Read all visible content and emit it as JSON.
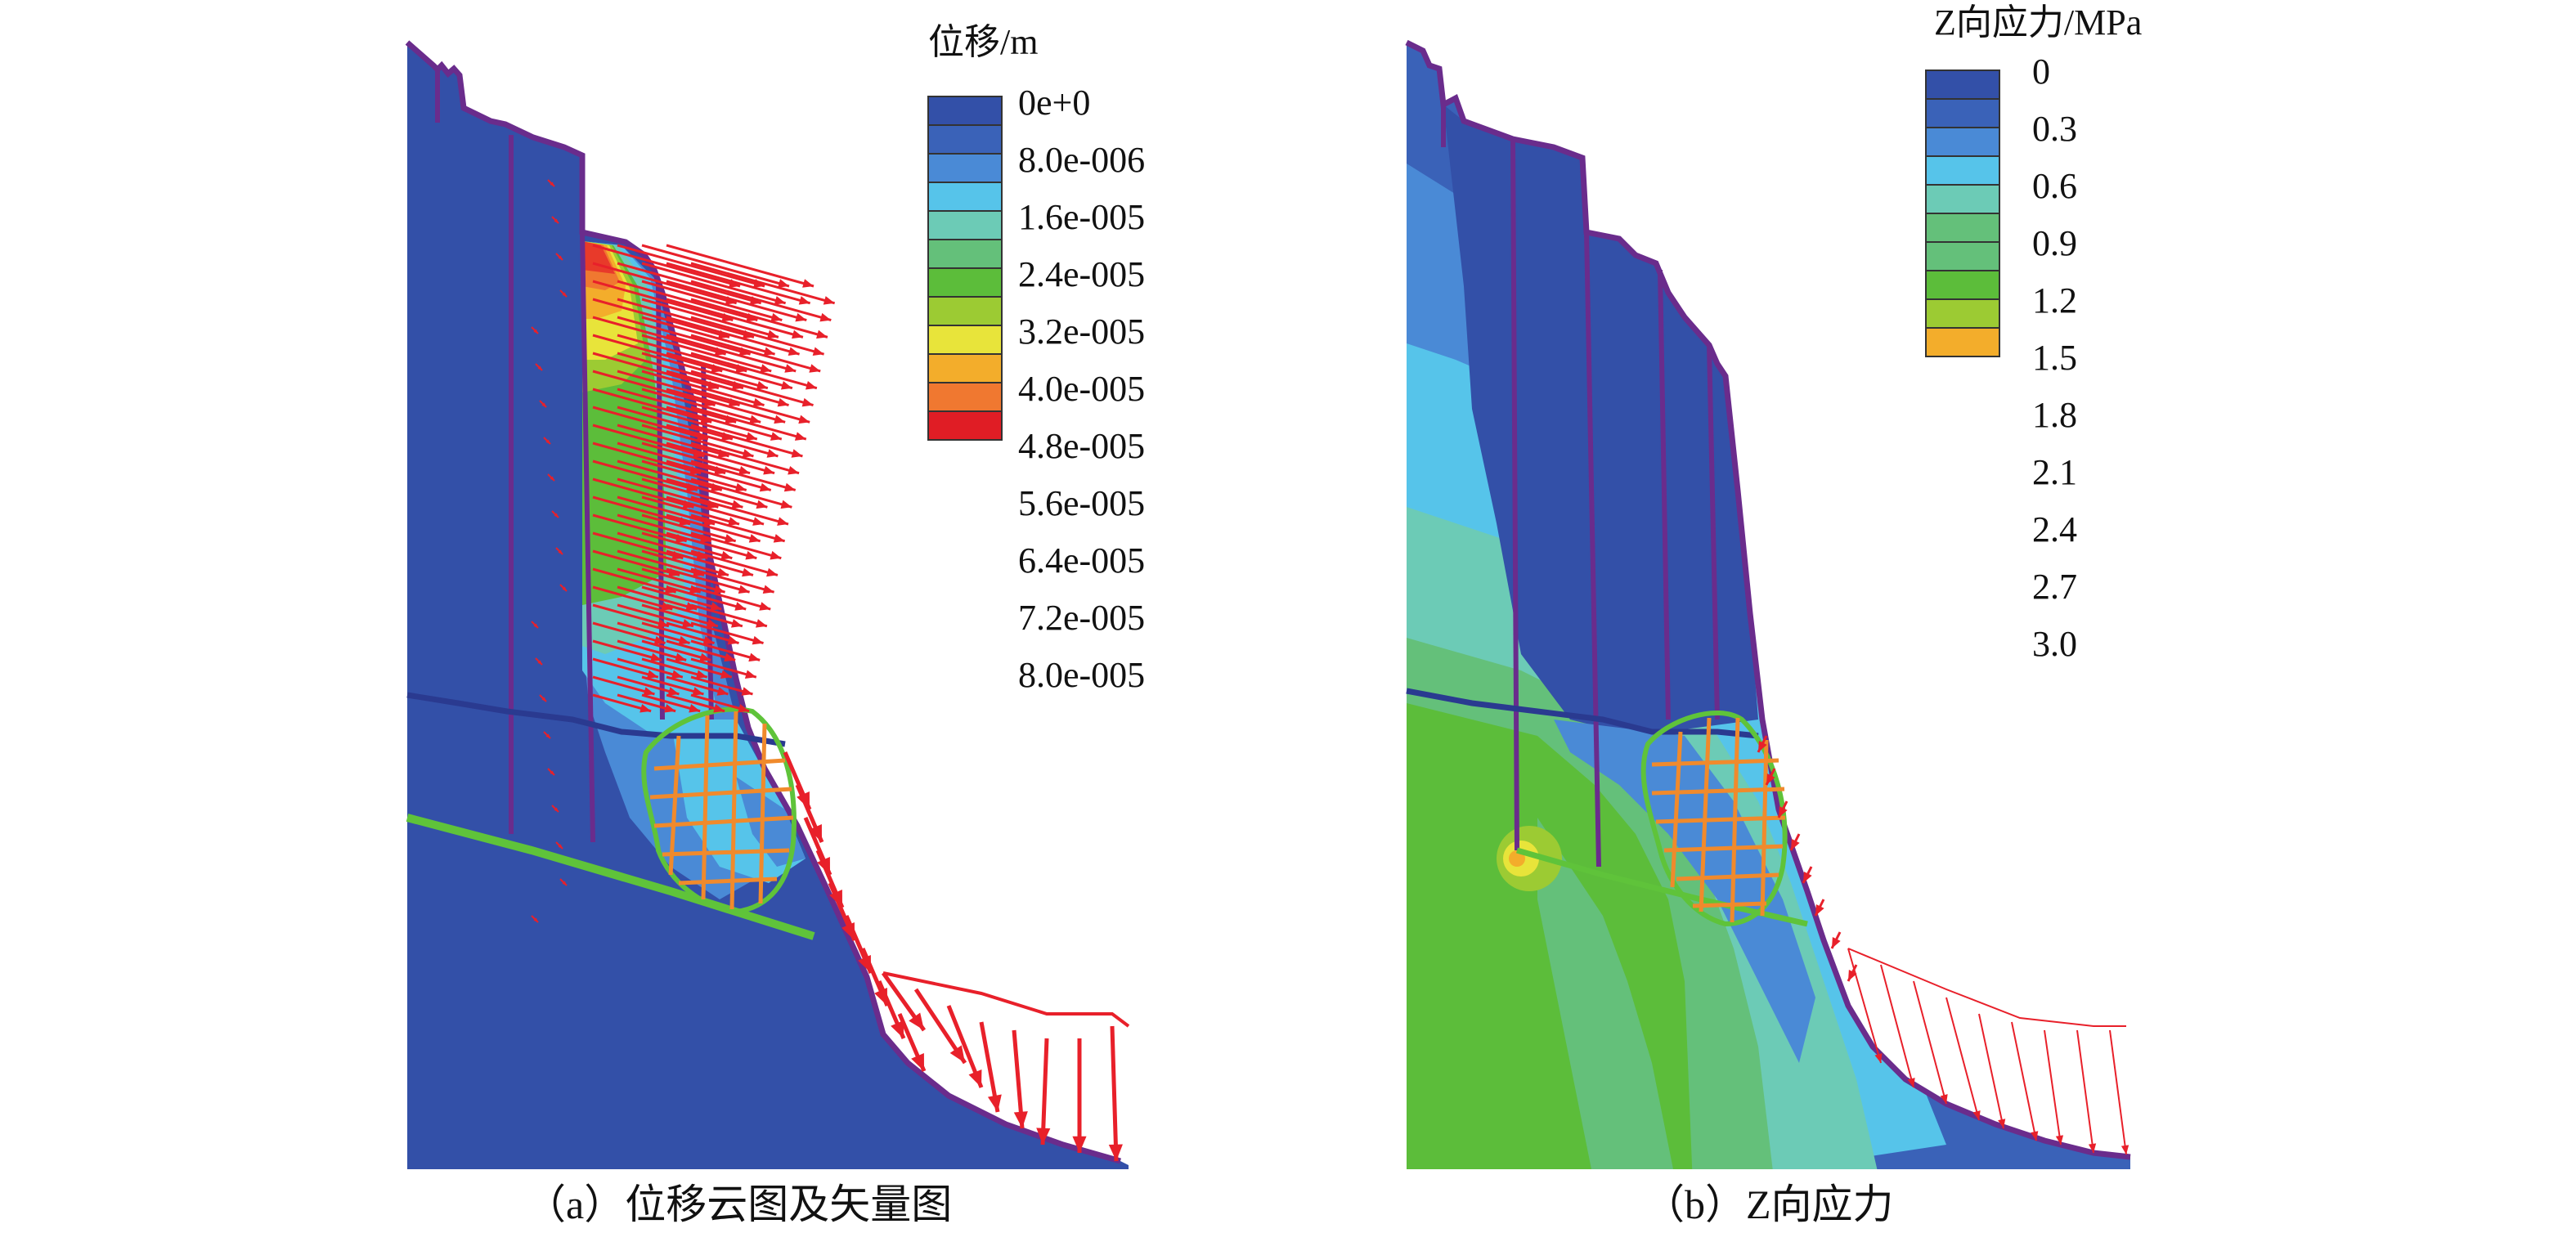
{
  "panel_a": {
    "legend_title": "位移/m",
    "legend_levels": [
      "0e+0",
      "8.0e-006",
      "1.6e-005",
      "2.4e-005",
      "3.2e-005",
      "4.0e-005",
      "4.8e-005",
      "5.6e-005",
      "6.4e-005",
      "7.2e-005",
      "8.0e-005"
    ],
    "caption": "（a）位移云图及矢量图"
  },
  "panel_b": {
    "legend_title": "Z向应力/MPa",
    "legend_levels": [
      "0",
      "0.3",
      "0.6",
      "0.9",
      "1.2",
      "1.5",
      "1.8",
      "2.1",
      "2.4",
      "2.7",
      "3.0"
    ],
    "caption": "（b）Z向应力"
  },
  "colors": {
    "deep_blue": "#3350a8",
    "vector_red": "#e8202a",
    "boundary_purple": "#6a2c8c",
    "grid_orange": "#f08a2c",
    "fault_green": "#5fc33a",
    "scale": [
      "#3350a8",
      "#3a62b8",
      "#4a8ad6",
      "#56c4ea",
      "#6ccbb6",
      "#64c07a",
      "#5cbd3a",
      "#9ccb33",
      "#e8e43a",
      "#f3ad2b",
      "#f07830",
      "#e83a2a",
      "#e01d25"
    ]
  }
}
